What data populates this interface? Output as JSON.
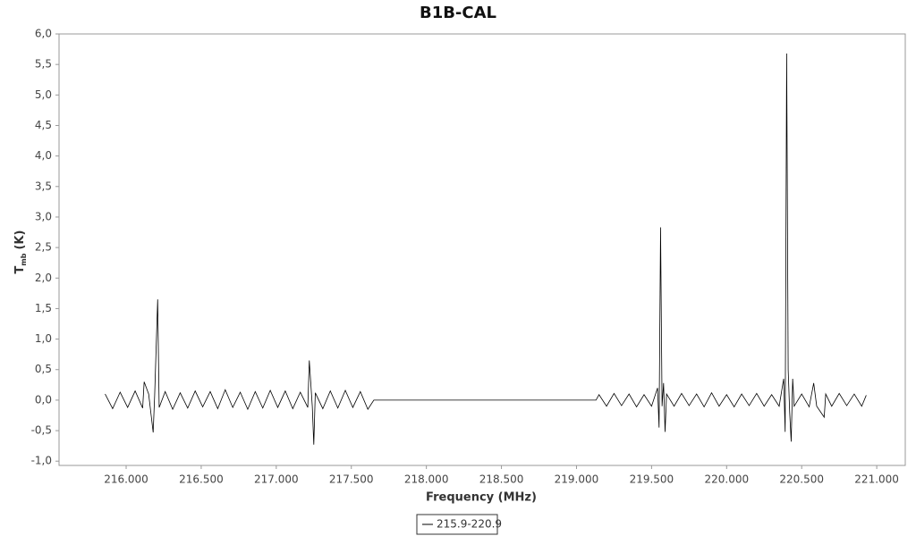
{
  "chart_data": {
    "type": "line",
    "title": "B1B-CAL",
    "x_label": "Frequency (MHz)",
    "y_label": "T",
    "y_label_sub": "mb",
    "y_label_unit": "(K)",
    "xlim": [
      215.553,
      221.19
    ],
    "ylim": [
      -1.07,
      6.0
    ],
    "xticks": [
      {
        "value": 216,
        "label": "216.000"
      },
      {
        "value": 216.5,
        "label": "216.500"
      },
      {
        "value": 217,
        "label": "217.000"
      },
      {
        "value": 217.5,
        "label": "217.500"
      },
      {
        "value": 218,
        "label": "218.000"
      },
      {
        "value": 218.5,
        "label": "218.500"
      },
      {
        "value": 219,
        "label": "219.000"
      },
      {
        "value": 219.5,
        "label": "219.500"
      },
      {
        "value": 220,
        "label": "220.000"
      },
      {
        "value": 220.5,
        "label": "220.500"
      },
      {
        "value": 221,
        "label": "221.000"
      }
    ],
    "yticks": [
      {
        "value": -1,
        "label": "-1,0"
      },
      {
        "value": -0.5,
        "label": "-0,5"
      },
      {
        "value": 0,
        "label": "0,0"
      },
      {
        "value": 0.5,
        "label": "0,5"
      },
      {
        "value": 1,
        "label": "1,0"
      },
      {
        "value": 1.5,
        "label": "1,5"
      },
      {
        "value": 2,
        "label": "2,0"
      },
      {
        "value": 2.5,
        "label": "2,5"
      },
      {
        "value": 3,
        "label": "3,0"
      },
      {
        "value": 3.5,
        "label": "3,5"
      },
      {
        "value": 4,
        "label": "4,0"
      },
      {
        "value": 4.5,
        "label": "4,5"
      },
      {
        "value": 5,
        "label": "5,0"
      },
      {
        "value": 5.5,
        "label": "5,5"
      },
      {
        "value": 6,
        "label": "6,0"
      }
    ],
    "legend_position": "bottom",
    "series": [
      {
        "name": "215.9-220.9",
        "color": "#000000",
        "x": [
          215.86,
          215.91,
          215.96,
          216.01,
          216.06,
          216.11,
          216.12,
          216.15,
          216.18,
          216.19,
          216.21,
          216.22,
          216.26,
          216.31,
          216.36,
          216.41,
          216.46,
          216.51,
          216.56,
          216.61,
          216.66,
          216.71,
          216.76,
          216.81,
          216.86,
          216.91,
          216.96,
          217.01,
          217.06,
          217.11,
          217.16,
          217.21,
          217.22,
          217.24,
          217.25,
          217.26,
          217.31,
          217.36,
          217.41,
          217.46,
          217.51,
          217.56,
          217.61,
          217.65,
          219.13,
          219.15,
          219.2,
          219.25,
          219.3,
          219.35,
          219.4,
          219.45,
          219.5,
          219.54,
          219.55,
          219.56,
          219.57,
          219.58,
          219.59,
          219.6,
          219.65,
          219.7,
          219.75,
          219.8,
          219.85,
          219.9,
          219.95,
          220.0,
          220.05,
          220.1,
          220.15,
          220.2,
          220.25,
          220.3,
          220.35,
          220.38,
          220.39,
          220.4,
          220.41,
          220.42,
          220.43,
          220.44,
          220.45,
          220.5,
          220.55,
          220.58,
          220.6,
          220.65,
          220.66,
          220.7,
          220.75,
          220.8,
          220.85,
          220.9,
          220.93
        ],
        "values": [
          0.1,
          -0.14,
          0.13,
          -0.12,
          0.15,
          -0.13,
          0.3,
          0.1,
          -0.53,
          0.08,
          1.65,
          -0.12,
          0.14,
          -0.15,
          0.12,
          -0.13,
          0.15,
          -0.11,
          0.14,
          -0.14,
          0.17,
          -0.12,
          0.13,
          -0.15,
          0.14,
          -0.13,
          0.16,
          -0.12,
          0.15,
          -0.14,
          0.13,
          -0.12,
          0.65,
          -0.1,
          -0.73,
          0.12,
          -0.14,
          0.15,
          -0.13,
          0.16,
          -0.12,
          0.14,
          -0.15,
          0.0,
          0.0,
          0.09,
          -0.1,
          0.11,
          -0.09,
          0.1,
          -0.11,
          0.09,
          -0.1,
          0.2,
          -0.45,
          2.83,
          -0.1,
          0.28,
          -0.52,
          0.1,
          -0.1,
          0.11,
          -0.09,
          0.1,
          -0.11,
          0.12,
          -0.1,
          0.09,
          -0.11,
          0.1,
          -0.09,
          0.11,
          -0.1,
          0.09,
          -0.1,
          0.35,
          -0.52,
          5.68,
          0.5,
          -0.2,
          -0.68,
          0.35,
          -0.1,
          0.1,
          -0.11,
          0.28,
          -0.1,
          -0.28,
          0.1,
          -0.1,
          0.11,
          -0.09,
          0.1,
          -0.1,
          0.08
        ]
      }
    ]
  }
}
